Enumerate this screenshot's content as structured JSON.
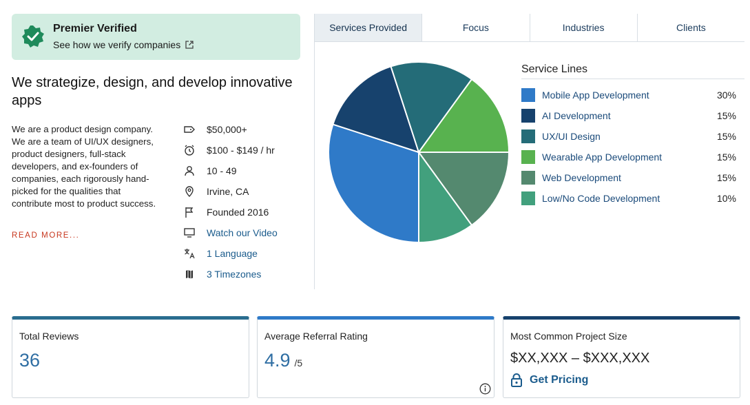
{
  "badge": {
    "title": "Premier Verified",
    "link_label": "See how we verify companies"
  },
  "company": {
    "tagline": "We strategize, design, and develop innovative apps",
    "description": "We are a product design company. We are a team of UI/UX designers, product designers, full-stack developers, and ex-founders of companies, each rigorously hand-picked for the qualities that contribute most to product success.",
    "read_more": "READ MORE..."
  },
  "facts": [
    {
      "icon": "tag-icon",
      "text": "$50,000+",
      "link": false
    },
    {
      "icon": "clock-icon",
      "text": "$100 - $149 / hr",
      "link": false
    },
    {
      "icon": "person-icon",
      "text": "10 - 49",
      "link": false
    },
    {
      "icon": "location-pin-icon",
      "text": "Irvine, CA",
      "link": false
    },
    {
      "icon": "flag-icon",
      "text": "Founded 2016",
      "link": false
    },
    {
      "icon": "monitor-icon",
      "text": "Watch our Video",
      "link": true
    },
    {
      "icon": "translate-icon",
      "text": "1 Language",
      "link": true
    },
    {
      "icon": "map-icon",
      "text": "3 Timezones",
      "link": true
    }
  ],
  "tabs": [
    {
      "label": "Services Provided",
      "active": true
    },
    {
      "label": "Focus",
      "active": false
    },
    {
      "label": "Industries",
      "active": false
    },
    {
      "label": "Clients",
      "active": false
    }
  ],
  "service_lines_title": "Service Lines",
  "chart_data": {
    "type": "pie",
    "title": "",
    "categories": [
      "Mobile App Development",
      "AI Development",
      "UX/UI Design",
      "Wearable App Development",
      "Web Development",
      "Low/No Code Development"
    ],
    "values": [
      30,
      15,
      15,
      15,
      15,
      10
    ],
    "value_labels": [
      "30%",
      "15%",
      "15%",
      "15%",
      "15%",
      "10%"
    ],
    "colors": [
      "#2f7ac8",
      "#17426d",
      "#246c78",
      "#58b24f",
      "#54896f",
      "#42a07d"
    ],
    "legend_position": "right"
  },
  "cards": {
    "total_reviews": {
      "title": "Total Reviews",
      "value": "36",
      "accent": "#2a6d8f"
    },
    "referral": {
      "title": "Average Referral Rating",
      "value": "4.9",
      "suffix": "/5",
      "accent": "#2f7ac8"
    },
    "project_size": {
      "title": "Most Common Project Size",
      "range": "$XX,XXX – $XXX,XXX",
      "pricing_label": "Get Pricing",
      "accent": "#17426d"
    }
  }
}
